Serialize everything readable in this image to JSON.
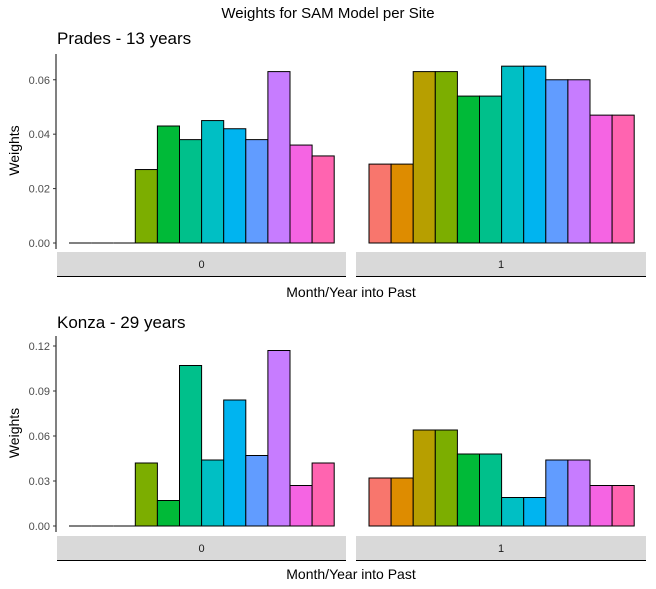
{
  "title": "Weights for SAM Model per Site",
  "chart_data": [
    {
      "type": "bar",
      "title": "Prades - 13 years",
      "ylabel": "Weights",
      "xlabel": "Month/Year into Past",
      "ylim": [
        0,
        0.068
      ],
      "yticks": [
        "0.00",
        "0.02",
        "0.04",
        "0.06"
      ],
      "facets": [
        "0",
        "1"
      ],
      "facet_values": [
        [
          0,
          0,
          0,
          0.027,
          0.043,
          0.038,
          0.045,
          0.042,
          0.038,
          0.063,
          0.036,
          0.032
        ],
        [
          0.029,
          0.029,
          0.063,
          0.063,
          0.054,
          0.054,
          0.065,
          0.065,
          0.06,
          0.06,
          0.047,
          0.047
        ]
      ]
    },
    {
      "type": "bar",
      "title": "Konza - 29 years",
      "ylabel": "Weights",
      "xlabel": "Month/Year into Past",
      "ylim": [
        0,
        0.124
      ],
      "yticks": [
        "0.00",
        "0.03",
        "0.06",
        "0.09",
        "0.12"
      ],
      "facets": [
        "0",
        "1"
      ],
      "facet_values": [
        [
          0,
          0,
          0,
          0.042,
          0.017,
          0.107,
          0.044,
          0.084,
          0.047,
          0.117,
          0.027,
          0.042
        ],
        [
          0.032,
          0.032,
          0.064,
          0.064,
          0.048,
          0.048,
          0.019,
          0.019,
          0.044,
          0.044,
          0.027,
          0.027
        ]
      ]
    }
  ],
  "colors": [
    "#F8766D",
    "#DE8C00",
    "#B79F00",
    "#7CAE00",
    "#00BA38",
    "#00C08B",
    "#00BFC4",
    "#00B4F0",
    "#619CFF",
    "#C77CFF",
    "#F564E3",
    "#FF64B0"
  ],
  "strip_fill": "#d9d9d9"
}
